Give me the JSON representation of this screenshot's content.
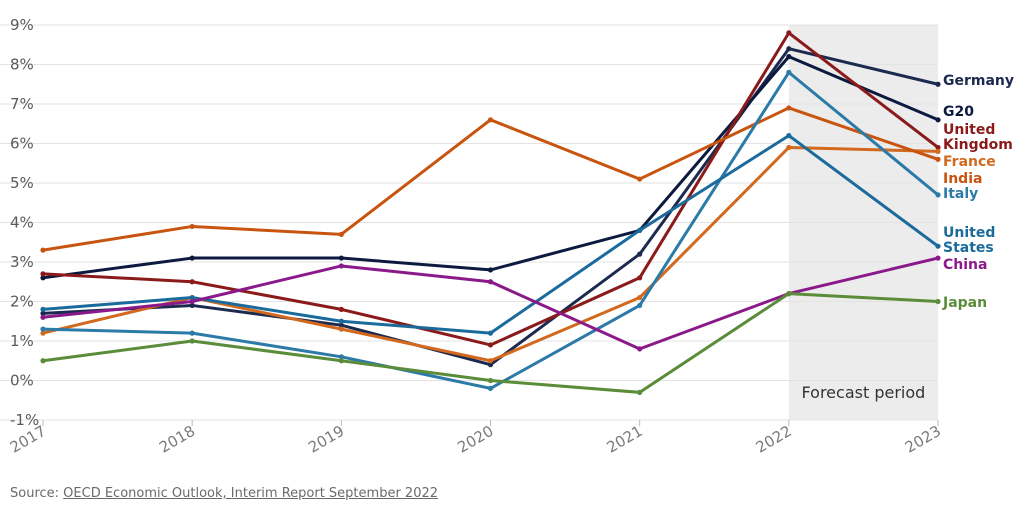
{
  "chart_data": {
    "type": "line",
    "x": [
      "2017",
      "2018",
      "2019",
      "2020",
      "2021",
      "2022",
      "2023"
    ],
    "ylim": [
      -1,
      9
    ],
    "yticks": [
      "9%",
      "8%",
      "7%",
      "6%",
      "5%",
      "4%",
      "3%",
      "2%",
      "1%",
      "0%",
      "-1%"
    ],
    "grid": true,
    "legend": "direct labels at line ends (right)",
    "annotation": "Forecast period",
    "forecast_from": "2022",
    "forecast_to": "2023",
    "series": [
      {
        "name": "Germany",
        "label_lines": [
          "Germany"
        ],
        "color": "#1c2a4f",
        "values": [
          1.7,
          1.9,
          1.4,
          0.4,
          3.2,
          8.4,
          7.5
        ]
      },
      {
        "name": "G20",
        "label_lines": [
          "G20"
        ],
        "color": "#0d1a3f",
        "values": [
          2.6,
          3.1,
          3.1,
          2.8,
          3.8,
          8.2,
          6.6
        ]
      },
      {
        "name": "United Kingdom",
        "label_lines": [
          "United",
          "Kingdom"
        ],
        "color": "#8b1a1a",
        "values": [
          2.7,
          2.5,
          1.8,
          0.9,
          2.6,
          8.8,
          5.9
        ]
      },
      {
        "name": "France",
        "label_lines": [
          "France"
        ],
        "color": "#d2691e",
        "values": [
          1.2,
          2.1,
          1.3,
          0.5,
          2.1,
          5.9,
          5.8
        ]
      },
      {
        "name": "India",
        "label_lines": [
          "India"
        ],
        "color": "#c8550f",
        "values": [
          3.3,
          3.9,
          3.7,
          6.6,
          5.1,
          6.9,
          5.6
        ]
      },
      {
        "name": "Italy",
        "label_lines": [
          "Italy"
        ],
        "color": "#2b7aa8",
        "values": [
          1.3,
          1.2,
          0.6,
          -0.2,
          1.9,
          7.8,
          4.7
        ]
      },
      {
        "name": "United States",
        "label_lines": [
          "United",
          "States"
        ],
        "color": "#1a6b9c",
        "values": [
          1.8,
          2.1,
          1.5,
          1.2,
          3.8,
          6.2,
          3.4
        ]
      },
      {
        "name": "China",
        "label_lines": [
          "China"
        ],
        "color": "#8a1a8a",
        "values": [
          1.6,
          2.0,
          2.9,
          2.5,
          0.8,
          2.2,
          3.1
        ]
      },
      {
        "name": "Japan",
        "label_lines": [
          "Japan"
        ],
        "color": "#5a8c3a",
        "values": [
          0.5,
          1.0,
          0.5,
          0.0,
          -0.3,
          2.2,
          2.0
        ]
      }
    ]
  },
  "source": {
    "prefix": "Source: ",
    "link_text": "OECD Economic Outlook, Interim Report September 2022"
  }
}
